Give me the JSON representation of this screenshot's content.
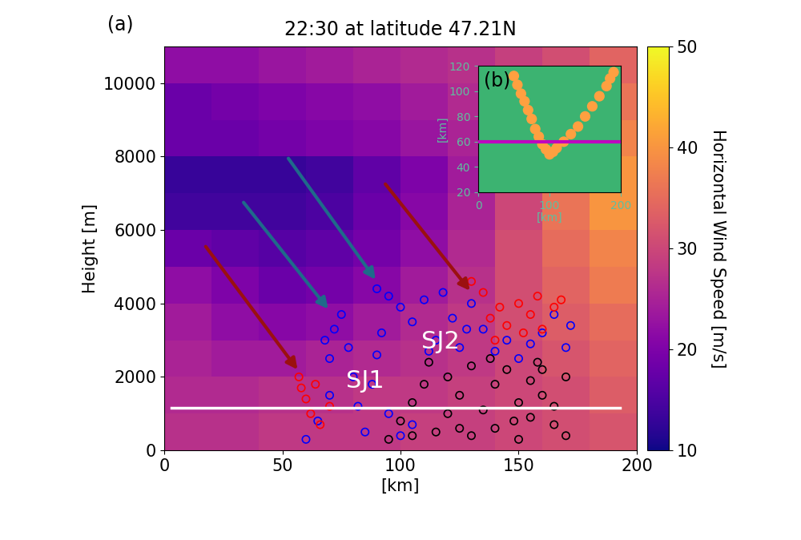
{
  "chart_data": {
    "type": "heatmap",
    "panel_label": "(a)",
    "title": "22:30 at latitude 47.21N",
    "x_label": "[km]",
    "y_label": "Height [m]",
    "xlim": [
      0,
      200
    ],
    "ylim": [
      0,
      11000
    ],
    "xticks": [
      0,
      50,
      100,
      150,
      200
    ],
    "yticks": [
      0,
      2000,
      4000,
      6000,
      8000,
      10000
    ],
    "heatmap": {
      "x_edges": [
        0,
        20,
        40,
        60,
        80,
        100,
        120,
        140,
        160,
        180,
        200
      ],
      "y_edges": [
        0,
        1000,
        2000,
        3000,
        4000,
        5000,
        6000,
        7000,
        8000,
        9000,
        10000,
        11000
      ],
      "cells": [
        [
          27,
          27,
          28,
          28,
          28,
          29,
          29,
          30,
          31,
          32
        ],
        [
          26,
          26,
          27,
          27,
          28,
          28,
          29,
          30,
          31,
          33
        ],
        [
          25,
          24,
          24,
          25,
          26,
          27,
          28,
          30,
          32,
          34
        ],
        [
          24,
          22,
          21,
          22,
          24,
          26,
          28,
          31,
          33,
          35
        ],
        [
          22,
          20,
          18,
          19,
          21,
          24,
          27,
          31,
          34,
          37
        ],
        [
          18,
          17,
          16,
          17,
          19,
          22,
          26,
          31,
          35,
          38
        ],
        [
          14,
          14,
          14,
          15,
          18,
          21,
          25,
          30,
          36,
          40
        ],
        [
          13,
          13,
          13,
          14,
          17,
          20,
          24,
          30,
          36,
          40
        ],
        [
          18,
          18,
          19,
          20,
          21,
          23,
          25,
          29,
          34,
          38
        ],
        [
          18,
          19,
          20,
          21,
          22,
          24,
          26,
          29,
          33,
          36
        ],
        [
          22,
          22,
          23,
          24,
          25,
          26,
          27,
          29,
          31,
          34
        ]
      ],
      "colorbar": {
        "label": "Horizontal Wind Speed [m/s]",
        "range": [
          10,
          50
        ],
        "ticks": [
          10,
          20,
          30,
          40,
          50
        ]
      }
    },
    "series": [
      {
        "type": "scatter",
        "color": "black",
        "marker": "o",
        "x": [
          95,
          100,
          105,
          110,
          115,
          120,
          120,
          125,
          130,
          130,
          135,
          140,
          140,
          145,
          150,
          150,
          155,
          155,
          160,
          160,
          165,
          165,
          170,
          170,
          112,
          125,
          138,
          148,
          158,
          105
        ],
        "y": [
          300,
          800,
          1300,
          1800,
          500,
          1000,
          2000,
          1500,
          400,
          2300,
          1100,
          1800,
          600,
          2200,
          1300,
          300,
          900,
          1900,
          2200,
          1500,
          700,
          1200,
          2000,
          400,
          2400,
          600,
          2500,
          800,
          2400,
          400
        ]
      },
      {
        "type": "scatter",
        "color": "blue",
        "marker": "o",
        "x": [
          60,
          65,
          70,
          70,
          72,
          75,
          78,
          80,
          82,
          85,
          88,
          90,
          92,
          95,
          100,
          105,
          68,
          90,
          95,
          100,
          105,
          110,
          115,
          118,
          122,
          125,
          130,
          135,
          140,
          145,
          150,
          155,
          160,
          165,
          170,
          172,
          112,
          128
        ],
        "y": [
          300,
          800,
          1500,
          2500,
          3300,
          3700,
          2800,
          2000,
          1200,
          500,
          1800,
          2600,
          3200,
          1000,
          400,
          700,
          3000,
          4400,
          4200,
          3900,
          3500,
          4100,
          3000,
          4300,
          3600,
          2800,
          4000,
          3300,
          2700,
          3000,
          2500,
          2900,
          3200,
          3700,
          2800,
          3400,
          2700,
          3300
        ]
      },
      {
        "type": "scatter",
        "color": "red",
        "marker": "o",
        "x": [
          57,
          58,
          60,
          62,
          64,
          66,
          70,
          130,
          135,
          138,
          142,
          145,
          150,
          155,
          160,
          165,
          168,
          140,
          152,
          158
        ],
        "y": [
          2000,
          1700,
          1400,
          1000,
          1800,
          700,
          1200,
          4600,
          4300,
          3600,
          3900,
          3400,
          4000,
          3700,
          3300,
          3900,
          4100,
          3000,
          3200,
          4200
        ]
      },
      {
        "type": "line",
        "color": "white",
        "x": [
          3,
          193
        ],
        "y": [
          1150,
          1150
        ]
      }
    ],
    "annotations": [
      {
        "text": "SJ1",
        "x": 85,
        "y": 1900
      },
      {
        "text": "SJ2",
        "x": 117,
        "y": 2950
      }
    ],
    "arrows": [
      {
        "from": [
          17,
          5600
        ],
        "to": [
          57,
          2150
        ],
        "color": "#9b1010"
      },
      {
        "from": [
          33,
          6800
        ],
        "to": [
          70,
          3800
        ],
        "color": "#1f6a8a"
      },
      {
        "from": [
          52,
          8000
        ],
        "to": [
          90,
          4600
        ],
        "color": "#1f6a8a"
      },
      {
        "from": [
          93,
          7300
        ],
        "to": [
          130,
          4300
        ],
        "color": "#9b1010"
      }
    ],
    "inset": {
      "panel_label": "(b)",
      "x_label": "[km]",
      "y_label": "[km]",
      "xlim": [
        0,
        200
      ],
      "ylim": [
        20,
        120
      ],
      "xticks": [
        0,
        100,
        200
      ],
      "yticks": [
        20,
        40,
        60,
        80,
        100,
        120
      ],
      "points": {
        "color": "#ffa040",
        "x": [
          50,
          55,
          60,
          65,
          70,
          75,
          80,
          85,
          90,
          95,
          100,
          105,
          110,
          120,
          130,
          140,
          150,
          160,
          170,
          180,
          185,
          190
        ],
        "y": [
          112,
          105,
          98,
          92,
          85,
          78,
          70,
          64,
          58,
          54,
          50,
          52,
          55,
          60,
          66,
          72,
          80,
          88,
          96,
          104,
          110,
          115
        ]
      },
      "line": {
        "color": "#c000c0",
        "x": [
          0,
          200
        ],
        "y": [
          60,
          60
        ]
      }
    }
  }
}
